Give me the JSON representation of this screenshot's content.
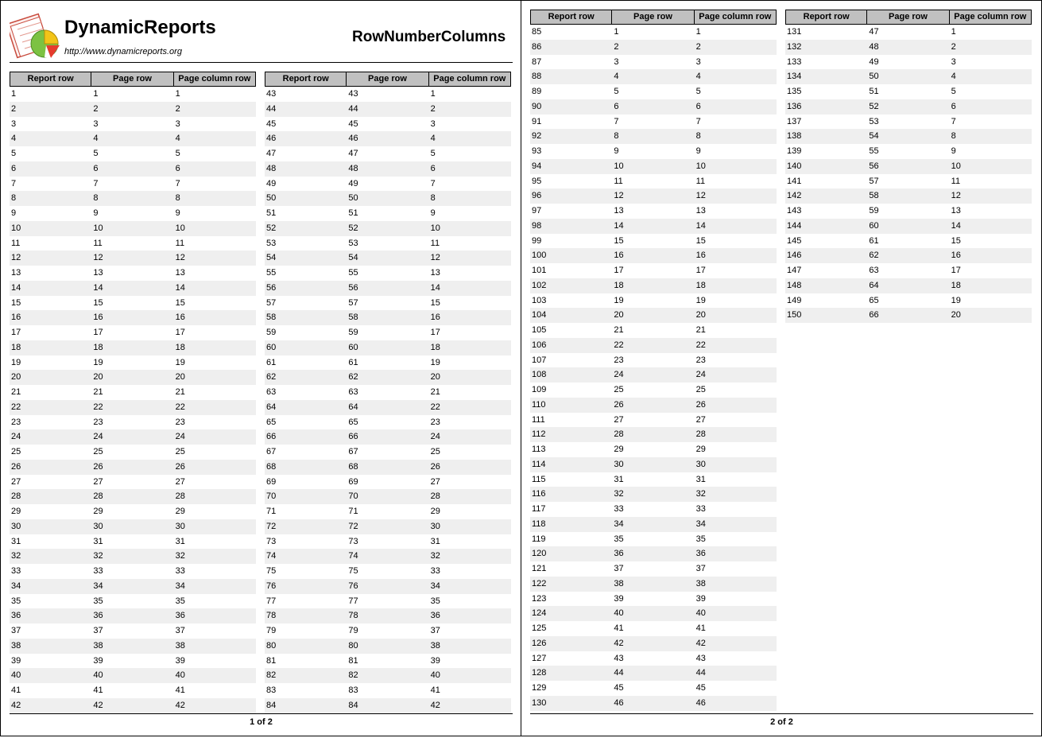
{
  "header": {
    "brand": "DynamicReports",
    "url": "http://www.dynamicreports.org",
    "report_title": "RowNumberColumns",
    "logo_icon": "report-logo-icon"
  },
  "columns": [
    "Report row",
    "Page row",
    "Page column row"
  ],
  "pages": [
    {
      "footer": "1 of 2",
      "blocks": [
        {
          "rows": [
            [
              1,
              1,
              1
            ],
            [
              2,
              2,
              2
            ],
            [
              3,
              3,
              3
            ],
            [
              4,
              4,
              4
            ],
            [
              5,
              5,
              5
            ],
            [
              6,
              6,
              6
            ],
            [
              7,
              7,
              7
            ],
            [
              8,
              8,
              8
            ],
            [
              9,
              9,
              9
            ],
            [
              10,
              10,
              10
            ],
            [
              11,
              11,
              11
            ],
            [
              12,
              12,
              12
            ],
            [
              13,
              13,
              13
            ],
            [
              14,
              14,
              14
            ],
            [
              15,
              15,
              15
            ],
            [
              16,
              16,
              16
            ],
            [
              17,
              17,
              17
            ],
            [
              18,
              18,
              18
            ],
            [
              19,
              19,
              19
            ],
            [
              20,
              20,
              20
            ],
            [
              21,
              21,
              21
            ],
            [
              22,
              22,
              22
            ],
            [
              23,
              23,
              23
            ],
            [
              24,
              24,
              24
            ],
            [
              25,
              25,
              25
            ],
            [
              26,
              26,
              26
            ],
            [
              27,
              27,
              27
            ],
            [
              28,
              28,
              28
            ],
            [
              29,
              29,
              29
            ],
            [
              30,
              30,
              30
            ],
            [
              31,
              31,
              31
            ],
            [
              32,
              32,
              32
            ],
            [
              33,
              33,
              33
            ],
            [
              34,
              34,
              34
            ],
            [
              35,
              35,
              35
            ],
            [
              36,
              36,
              36
            ],
            [
              37,
              37,
              37
            ],
            [
              38,
              38,
              38
            ],
            [
              39,
              39,
              39
            ],
            [
              40,
              40,
              40
            ],
            [
              41,
              41,
              41
            ],
            [
              42,
              42,
              42
            ]
          ]
        },
        {
          "rows": [
            [
              43,
              43,
              1
            ],
            [
              44,
              44,
              2
            ],
            [
              45,
              45,
              3
            ],
            [
              46,
              46,
              4
            ],
            [
              47,
              47,
              5
            ],
            [
              48,
              48,
              6
            ],
            [
              49,
              49,
              7
            ],
            [
              50,
              50,
              8
            ],
            [
              51,
              51,
              9
            ],
            [
              52,
              52,
              10
            ],
            [
              53,
              53,
              11
            ],
            [
              54,
              54,
              12
            ],
            [
              55,
              55,
              13
            ],
            [
              56,
              56,
              14
            ],
            [
              57,
              57,
              15
            ],
            [
              58,
              58,
              16
            ],
            [
              59,
              59,
              17
            ],
            [
              60,
              60,
              18
            ],
            [
              61,
              61,
              19
            ],
            [
              62,
              62,
              20
            ],
            [
              63,
              63,
              21
            ],
            [
              64,
              64,
              22
            ],
            [
              65,
              65,
              23
            ],
            [
              66,
              66,
              24
            ],
            [
              67,
              67,
              25
            ],
            [
              68,
              68,
              26
            ],
            [
              69,
              69,
              27
            ],
            [
              70,
              70,
              28
            ],
            [
              71,
              71,
              29
            ],
            [
              72,
              72,
              30
            ],
            [
              73,
              73,
              31
            ],
            [
              74,
              74,
              32
            ],
            [
              75,
              75,
              33
            ],
            [
              76,
              76,
              34
            ],
            [
              77,
              77,
              35
            ],
            [
              78,
              78,
              36
            ],
            [
              79,
              79,
              37
            ],
            [
              80,
              80,
              38
            ],
            [
              81,
              81,
              39
            ],
            [
              82,
              82,
              40
            ],
            [
              83,
              83,
              41
            ],
            [
              84,
              84,
              42
            ]
          ]
        }
      ]
    },
    {
      "footer": "2 of 2",
      "blocks": [
        {
          "rows": [
            [
              85,
              1,
              1
            ],
            [
              86,
              2,
              2
            ],
            [
              87,
              3,
              3
            ],
            [
              88,
              4,
              4
            ],
            [
              89,
              5,
              5
            ],
            [
              90,
              6,
              6
            ],
            [
              91,
              7,
              7
            ],
            [
              92,
              8,
              8
            ],
            [
              93,
              9,
              9
            ],
            [
              94,
              10,
              10
            ],
            [
              95,
              11,
              11
            ],
            [
              96,
              12,
              12
            ],
            [
              97,
              13,
              13
            ],
            [
              98,
              14,
              14
            ],
            [
              99,
              15,
              15
            ],
            [
              100,
              16,
              16
            ],
            [
              101,
              17,
              17
            ],
            [
              102,
              18,
              18
            ],
            [
              103,
              19,
              19
            ],
            [
              104,
              20,
              20
            ],
            [
              105,
              21,
              21
            ],
            [
              106,
              22,
              22
            ],
            [
              107,
              23,
              23
            ],
            [
              108,
              24,
              24
            ],
            [
              109,
              25,
              25
            ],
            [
              110,
              26,
              26
            ],
            [
              111,
              27,
              27
            ],
            [
              112,
              28,
              28
            ],
            [
              113,
              29,
              29
            ],
            [
              114,
              30,
              30
            ],
            [
              115,
              31,
              31
            ],
            [
              116,
              32,
              32
            ],
            [
              117,
              33,
              33
            ],
            [
              118,
              34,
              34
            ],
            [
              119,
              35,
              35
            ],
            [
              120,
              36,
              36
            ],
            [
              121,
              37,
              37
            ],
            [
              122,
              38,
              38
            ],
            [
              123,
              39,
              39
            ],
            [
              124,
              40,
              40
            ],
            [
              125,
              41,
              41
            ],
            [
              126,
              42,
              42
            ],
            [
              127,
              43,
              43
            ],
            [
              128,
              44,
              44
            ],
            [
              129,
              45,
              45
            ],
            [
              130,
              46,
              46
            ]
          ]
        },
        {
          "rows": [
            [
              131,
              47,
              1
            ],
            [
              132,
              48,
              2
            ],
            [
              133,
              49,
              3
            ],
            [
              134,
              50,
              4
            ],
            [
              135,
              51,
              5
            ],
            [
              136,
              52,
              6
            ],
            [
              137,
              53,
              7
            ],
            [
              138,
              54,
              8
            ],
            [
              139,
              55,
              9
            ],
            [
              140,
              56,
              10
            ],
            [
              141,
              57,
              11
            ],
            [
              142,
              58,
              12
            ],
            [
              143,
              59,
              13
            ],
            [
              144,
              60,
              14
            ],
            [
              145,
              61,
              15
            ],
            [
              146,
              62,
              16
            ],
            [
              147,
              63,
              17
            ],
            [
              148,
              64,
              18
            ],
            [
              149,
              65,
              19
            ],
            [
              150,
              66,
              20
            ]
          ]
        }
      ]
    }
  ]
}
